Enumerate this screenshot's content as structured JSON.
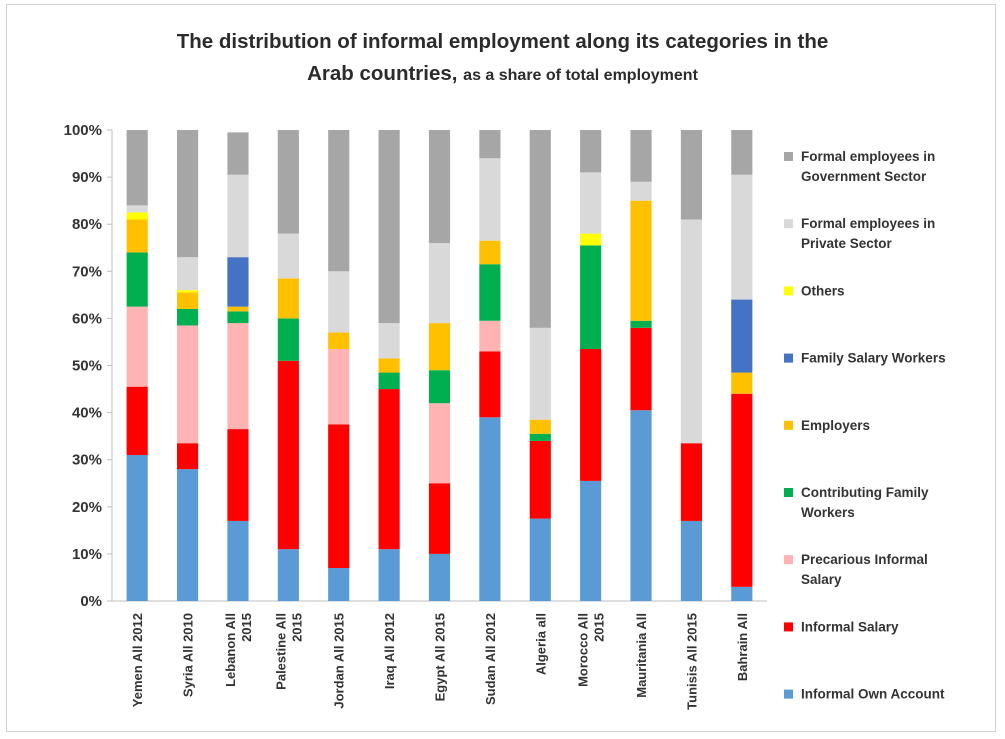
{
  "chart_data": {
    "type": "bar",
    "stacked": true,
    "title": "The distribution of informal employment along its categories in the",
    "title_line2": "Arab countries,",
    "subtitle": "as a share of total employment",
    "y_ticks": [
      "0%",
      "10%",
      "20%",
      "30%",
      "40%",
      "50%",
      "60%",
      "70%",
      "80%",
      "90%",
      "100%"
    ],
    "ylim": [
      0,
      100
    ],
    "grid": false,
    "legend_position": "right",
    "categories": [
      [
        "Yemen All 2012"
      ],
      [
        "Syria All 2010"
      ],
      [
        "Lebanon All",
        "2015"
      ],
      [
        "Palestine All",
        "2015"
      ],
      [
        "Jordan All 2015"
      ],
      [
        "Iraq All 2012"
      ],
      [
        "Egypt All 2015"
      ],
      [
        "Sudan All 2012"
      ],
      [
        "Algeria all"
      ],
      [
        "Morocco All",
        "2015"
      ],
      [
        "Mauritania All"
      ],
      [
        "Tunisis All 2015"
      ],
      [
        "Bahrain All"
      ]
    ],
    "series": [
      {
        "name": "Informal Own Account",
        "color": "#5b9bd5",
        "values": [
          31,
          28,
          17,
          11,
          7,
          11,
          10,
          39,
          17.5,
          25.5,
          40.5,
          17,
          3
        ]
      },
      {
        "name": "Informal Salary",
        "color": "#ff0000",
        "values": [
          14.5,
          5.5,
          19.5,
          40,
          30.5,
          34,
          15,
          14,
          16.5,
          28,
          17.5,
          16.5,
          41
        ]
      },
      {
        "name": "Precarious Informal Salary",
        "color": "#ffb3b3",
        "values": [
          17,
          25,
          22.5,
          0,
          16,
          0,
          17,
          6.5,
          0,
          0,
          0,
          0,
          0
        ]
      },
      {
        "name": "Contributing Family Workers",
        "color": "#00b050",
        "values": [
          11.5,
          3.5,
          2.5,
          9,
          0,
          3.5,
          7,
          12,
          1.5,
          22,
          1.5,
          0,
          0
        ]
      },
      {
        "name": "Employers",
        "color": "#ffc000",
        "values": [
          7,
          3.5,
          1,
          8.5,
          3.5,
          3,
          10,
          5,
          3,
          0,
          25.5,
          0,
          4.5
        ]
      },
      {
        "name": "Family Salary Workers",
        "color": "#4472c4",
        "values": [
          0,
          0,
          10.5,
          0,
          0,
          0,
          0,
          0,
          0,
          0,
          0,
          0,
          15.5
        ]
      },
      {
        "name": "Others",
        "color": "#ffff00",
        "values": [
          1.5,
          0.5,
          0,
          0,
          0,
          0,
          0,
          0,
          0,
          2.5,
          0,
          0,
          0
        ]
      },
      {
        "name": "Formal employees in Private Sector",
        "color": "#d9d9d9",
        "values": [
          1.5,
          7,
          17.5,
          9.5,
          13,
          7.5,
          17,
          17.5,
          19.5,
          13,
          4,
          47.5,
          26.5
        ]
      },
      {
        "name": "Formal employees in Government Sector",
        "color": "#a6a6a6",
        "values": [
          16,
          27,
          9,
          22,
          30,
          41,
          24,
          6,
          42,
          9,
          11,
          19,
          9.5
        ]
      }
    ],
    "legend": [
      [
        "Formal employees in",
        "Government Sector"
      ],
      [
        "Formal employees in",
        "Private Sector"
      ],
      [
        "Others"
      ],
      [
        "Family Salary Workers"
      ],
      [
        "Employers"
      ],
      [
        "Contributing Family",
        "Workers"
      ],
      [
        "Precarious Informal",
        "Salary"
      ],
      [
        "Informal Salary"
      ],
      [
        "Informal Own Account"
      ]
    ]
  }
}
